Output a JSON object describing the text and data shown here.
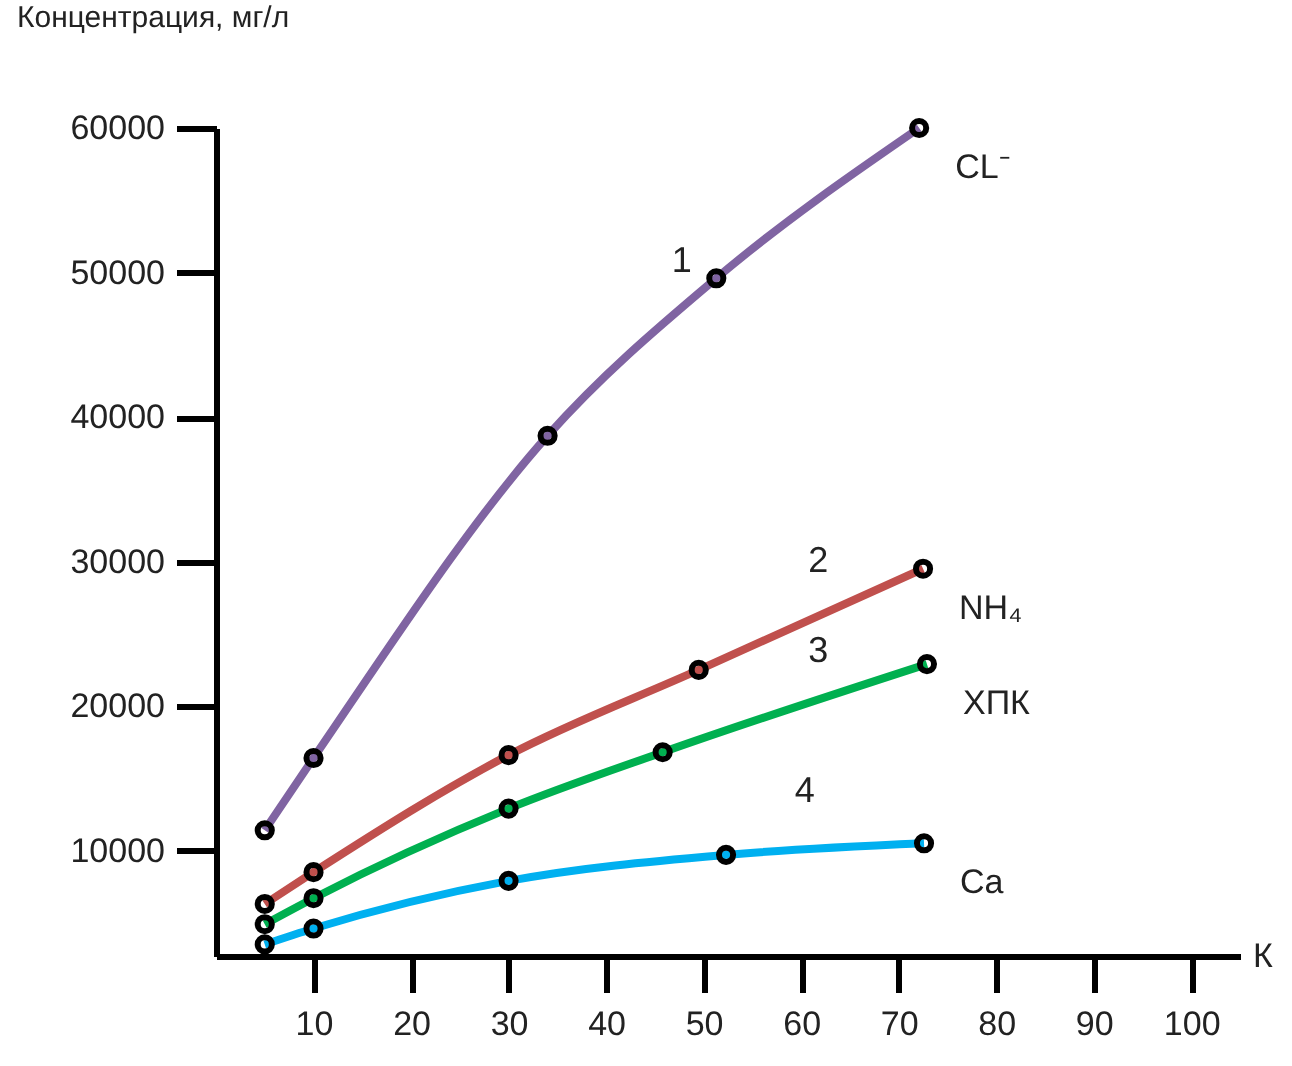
{
  "chart_data": {
    "type": "line",
    "xlabel": "К",
    "ylabel": "Концентрация, мг/л",
    "xlim": [
      0,
      105
    ],
    "xticks": [
      10,
      20,
      30,
      40,
      50,
      60,
      70,
      80,
      90,
      100
    ],
    "ylim": [
      2700,
      60000
    ],
    "yticks": [
      10000,
      20000,
      30000,
      40000,
      50000,
      60000
    ],
    "grid": false,
    "marker": "circle",
    "line_style": "solid",
    "series": [
      {
        "name": "CL⁻",
        "color": "#8064a2",
        "x": [
          5,
          10,
          34,
          51.3,
          72.1
        ],
        "values": [
          11400,
          16400,
          38700,
          49600,
          60000
        ]
      },
      {
        "name": "NH₄",
        "color": "#c0504d",
        "x": [
          5,
          10,
          30,
          49.5,
          72.5
        ],
        "values": [
          6300,
          8500,
          16600,
          22500,
          29500
        ]
      },
      {
        "name": "ХПК",
        "color": "#00b050",
        "x": [
          5,
          10,
          30,
          45.8,
          72.9
        ],
        "values": [
          4900,
          6700,
          12900,
          16800,
          22900
        ]
      },
      {
        "name": "Ca",
        "color": "#00b0f0",
        "x": [
          5,
          10,
          30,
          52.3,
          72.6
        ],
        "values": [
          3500,
          4600,
          7900,
          9700,
          10500
        ]
      }
    ],
    "annotations": [
      {
        "text": "1",
        "x": 45.3,
        "y": 47100
      },
      {
        "text": "2",
        "x": 59.3,
        "y": 26400
      },
      {
        "text": "3",
        "x": 59.3,
        "y": 20150
      },
      {
        "text": "4",
        "x": 57.9,
        "y": 10460
      }
    ]
  }
}
